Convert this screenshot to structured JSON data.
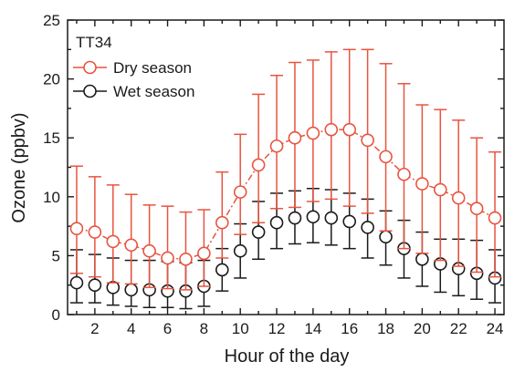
{
  "chart_data": {
    "type": "line",
    "panel_label": "TT34",
    "xlabel": "Hour of the day",
    "ylabel": "Ozone (ppbv)",
    "xlim": [
      0.5,
      24.5
    ],
    "ylim": [
      0,
      25
    ],
    "xticks": [
      2,
      4,
      6,
      8,
      10,
      12,
      14,
      16,
      18,
      20,
      22,
      24
    ],
    "yticks": [
      0,
      5,
      10,
      15,
      20,
      25
    ],
    "x": [
      1,
      2,
      3,
      4,
      5,
      6,
      7,
      8,
      9,
      10,
      11,
      12,
      13,
      14,
      15,
      16,
      17,
      18,
      19,
      20,
      21,
      22,
      23,
      24
    ],
    "legend_position": "top-left",
    "series": [
      {
        "name": "Dry season",
        "color": "#e8543f",
        "marker": "open-circle",
        "line": "dash-dot",
        "values": [
          7.3,
          7.0,
          6.2,
          5.9,
          5.4,
          4.8,
          4.7,
          5.2,
          7.8,
          10.4,
          12.7,
          14.3,
          15.0,
          15.4,
          15.7,
          15.7,
          14.8,
          13.4,
          11.9,
          11.1,
          10.6,
          9.9,
          9.0,
          8.2
        ],
        "error_upper": [
          12.6,
          11.7,
          11.0,
          10.2,
          9.3,
          9.2,
          8.7,
          8.9,
          12.1,
          15.3,
          18.7,
          20.3,
          21.4,
          21.6,
          22.3,
          22.5,
          22.5,
          21.3,
          19.6,
          17.8,
          17.4,
          16.5,
          15.0,
          13.8
        ],
        "error_lower": [
          3.5,
          3.2,
          2.7,
          2.6,
          2.3,
          2.2,
          2.1,
          2.4,
          4.8,
          6.8,
          7.8,
          9.0,
          9.1,
          9.6,
          9.8,
          9.2,
          8.6,
          7.1,
          5.6,
          5.2,
          4.6,
          4.1,
          3.6,
          3.2
        ]
      },
      {
        "name": "Wet season",
        "color": "#1a1a1a",
        "marker": "open-circle",
        "line": "none",
        "values": [
          2.7,
          2.5,
          2.3,
          2.1,
          2.1,
          2.0,
          2.0,
          2.4,
          3.8,
          5.4,
          7.0,
          7.8,
          8.2,
          8.3,
          8.2,
          7.9,
          7.4,
          6.6,
          5.6,
          4.7,
          4.3,
          3.9,
          3.5,
          3.1
        ],
        "error_upper": [
          5.5,
          5.1,
          4.8,
          4.6,
          4.6,
          4.5,
          4.4,
          4.6,
          5.6,
          7.7,
          9.6,
          10.3,
          10.5,
          10.7,
          10.6,
          10.3,
          9.8,
          8.8,
          8.0,
          7.0,
          6.4,
          6.4,
          6.3,
          5.5
        ],
        "error_lower": [
          1.0,
          1.0,
          0.8,
          0.7,
          0.6,
          0.6,
          0.5,
          0.7,
          2.0,
          3.1,
          4.7,
          5.6,
          6.0,
          6.1,
          5.9,
          5.6,
          4.8,
          4.2,
          3.1,
          2.4,
          1.9,
          1.6,
          1.3,
          1.0
        ]
      }
    ]
  }
}
